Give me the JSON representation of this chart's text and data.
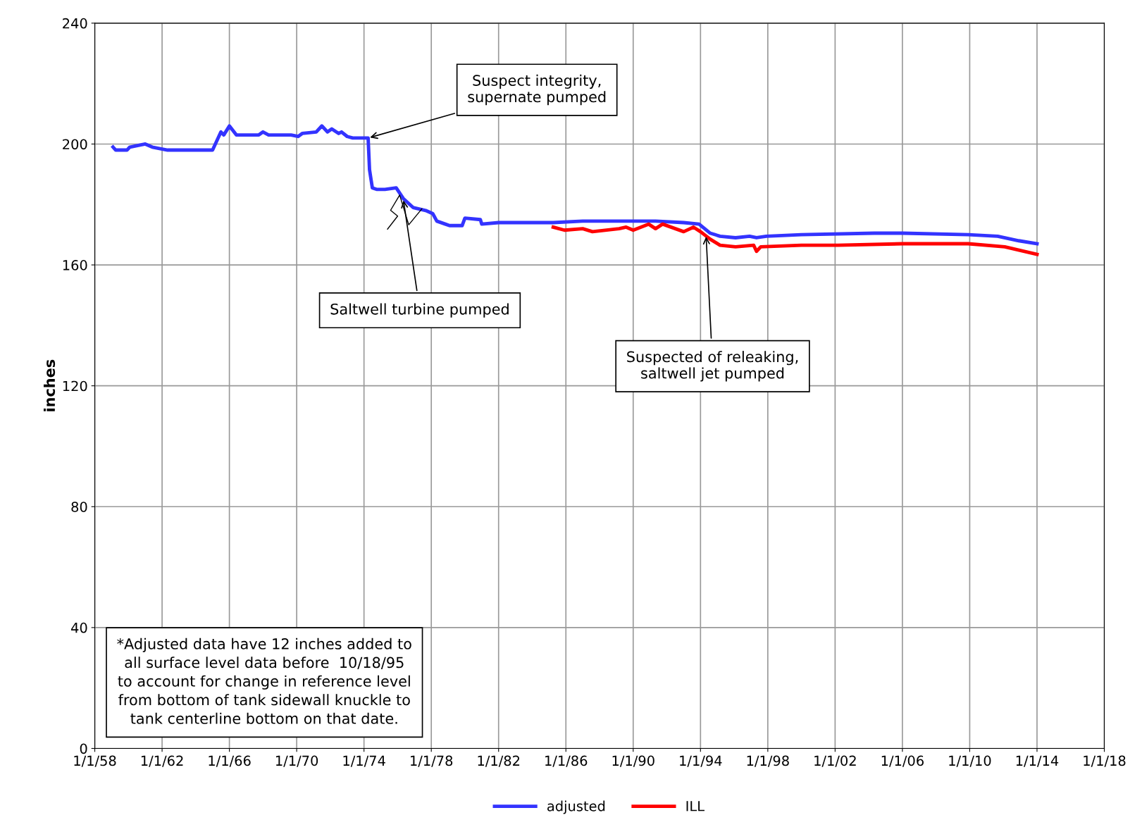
{
  "chart_data": {
    "type": "line",
    "ylabel": "inches",
    "xlim": [
      "1958-01-01",
      "2018-01-01"
    ],
    "xticks": [
      {
        "value": "1958-01-01",
        "label": "1/1/58"
      },
      {
        "value": "1962-01-01",
        "label": "1/1/62"
      },
      {
        "value": "1966-01-01",
        "label": "1/1/66"
      },
      {
        "value": "1970-01-01",
        "label": "1/1/70"
      },
      {
        "value": "1974-01-01",
        "label": "1/1/74"
      },
      {
        "value": "1978-01-01",
        "label": "1/1/78"
      },
      {
        "value": "1982-01-01",
        "label": "1/1/82"
      },
      {
        "value": "1986-01-01",
        "label": "1/1/86"
      },
      {
        "value": "1990-01-01",
        "label": "1/1/90"
      },
      {
        "value": "1994-01-01",
        "label": "1/1/94"
      },
      {
        "value": "1998-01-01",
        "label": "1/1/98"
      },
      {
        "value": "2002-01-01",
        "label": "1/1/02"
      },
      {
        "value": "2006-01-01",
        "label": "1/1/06"
      },
      {
        "value": "2010-01-01",
        "label": "1/1/10"
      },
      {
        "value": "2014-01-01",
        "label": "1/1/14"
      },
      {
        "value": "2018-01-01",
        "label": "1/1/18"
      }
    ],
    "ylim": [
      0,
      240
    ],
    "yticks": [
      0,
      40,
      80,
      120,
      160,
      200,
      240
    ],
    "grid": true,
    "legend": "bottom",
    "series": [
      {
        "name": "adjusted",
        "color": "#3333ff",
        "x": [
          "1959-02",
          "1959-04",
          "1959-12",
          "1960-02",
          "1961-01",
          "1961-06",
          "1962-05",
          "1965-01",
          "1965-07",
          "1965-09",
          "1966-01",
          "1966-06",
          "1967-10",
          "1968-01",
          "1968-05",
          "1969-09",
          "1970-02",
          "1970-05",
          "1971-03",
          "1971-07",
          "1971-11",
          "1972-02",
          "1972-07",
          "1972-09",
          "1973-01",
          "1973-05",
          "1973-07",
          "1974-04",
          "1974-05",
          "1974-07",
          "1974-10",
          "1975-04",
          "1975-12",
          "1976-05",
          "1976-12",
          "1977-09",
          "1978-02",
          "1978-05",
          "1978-11",
          "1979-02",
          "1979-11",
          "1980-01",
          "1980-12",
          "1981-01",
          "1982-01",
          "1985-04",
          "1987-01",
          "1991-05",
          "1993-01",
          "1993-12",
          "1994-08",
          "1995-03",
          "1996-02",
          "1996-12",
          "1997-05",
          "1997-12",
          "2000-01",
          "2004-05",
          "2006-01",
          "2009-12",
          "2011-09",
          "2012-12",
          "2014-01"
        ],
        "values": [
          199,
          198,
          198,
          199,
          200,
          199,
          198,
          198,
          204,
          203,
          206,
          203,
          203,
          204,
          203,
          203,
          202.5,
          203.5,
          204,
          206,
          204,
          205,
          203.5,
          204,
          202.5,
          202,
          202,
          202,
          191.5,
          185.5,
          185,
          185,
          185.5,
          182,
          179,
          178,
          177,
          174.5,
          173.5,
          173,
          173,
          175.5,
          175,
          173.5,
          174,
          174,
          174.5,
          174.5,
          174,
          173.5,
          170.5,
          169.5,
          169,
          169.5,
          169,
          169.5,
          170,
          170.5,
          170.5,
          170,
          169.5,
          168,
          167
        ]
      },
      {
        "name": "ILL",
        "color": "#ff0000",
        "x": [
          "1985-04",
          "1985-12",
          "1987-01",
          "1987-08",
          "1989-03",
          "1989-08",
          "1990-01",
          "1990-12",
          "1991-05",
          "1991-10",
          "1993-01",
          "1993-08",
          "1994-01",
          "1994-08",
          "1995-03",
          "1996-02",
          "1997-03",
          "1997-05",
          "1997-08",
          "2000-01",
          "2002-03",
          "2006-01",
          "2009-12",
          "2012-02",
          "2014-01"
        ],
        "values": [
          172.5,
          171.5,
          172,
          171,
          172,
          172.5,
          171.5,
          173.5,
          172,
          173.5,
          171,
          172.5,
          171,
          168.5,
          166.5,
          166,
          166.5,
          164.5,
          166,
          166.5,
          166.5,
          167,
          167,
          166,
          163.5
        ]
      }
    ],
    "annotations": [
      {
        "text": "Suspect integrity,\nsupernate pumped",
        "x": "1974-04",
        "y": 202
      },
      {
        "text": "Saltwell turbine pumped",
        "x": "1976-05",
        "y": 182
      },
      {
        "text": "Suspected of releaking,\nsaltwell jet pumped",
        "x": "1994-05",
        "y": 170
      },
      "*Adjusted data have 12 inches added to\nall surface level data before  10/18/95\nto account for change in reference level\nfrom bottom of tank sidewall knuckle to\ntank centerline bottom on that date."
    ]
  }
}
